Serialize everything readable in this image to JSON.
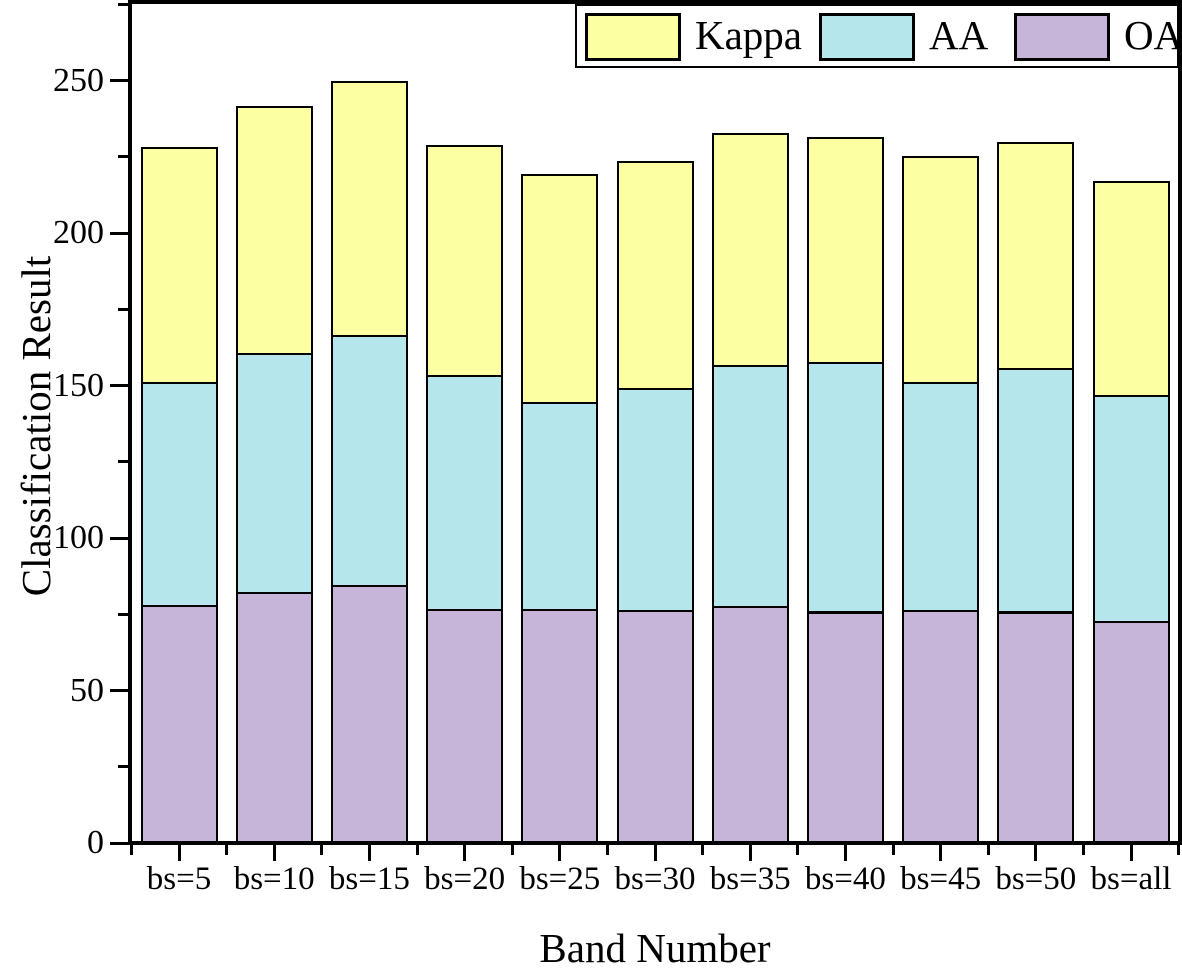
{
  "chart_data": {
    "type": "bar",
    "stacked": true,
    "title": "",
    "xlabel": "Band Number",
    "ylabel": "Classification Result",
    "categories": [
      "bs=5",
      "bs=10",
      "bs=15",
      "bs=20",
      "bs=25",
      "bs=30",
      "bs=35",
      "bs=40",
      "bs=45",
      "bs=50",
      "bs=all"
    ],
    "series": [
      {
        "name": "OA",
        "color": "#C6B5D9",
        "values": [
          78.1,
          82.2,
          84.7,
          76.8,
          76.7,
          76.5,
          77.6,
          75.9,
          76.5,
          75.9,
          72.7
        ]
      },
      {
        "name": "AA",
        "color": "#B5E6EB",
        "values": [
          73.0,
          78.5,
          81.7,
          76.8,
          68.0,
          72.6,
          79.0,
          81.8,
          74.7,
          79.8,
          74.1
        ]
      },
      {
        "name": "Kappa",
        "color": "#FDFFA3",
        "values": [
          77.0,
          81.1,
          83.4,
          75.1,
          74.7,
          74.5,
          76.3,
          73.8,
          73.9,
          74.0,
          70.2
        ]
      }
    ],
    "totals": [
      228.1,
      241.8,
      249.8,
      228.7,
      219.4,
      223.6,
      232.9,
      231.5,
      225.1,
      229.7,
      217.0
    ],
    "y_ticks_major": [
      0,
      50,
      100,
      150,
      200,
      250
    ],
    "y_ticks_minor": [
      25,
      75,
      125,
      175,
      225,
      275
    ],
    "ylim": [
      0,
      275.5
    ],
    "grid": false,
    "legend_position": "top-right",
    "bar_edge_color": "#000000"
  },
  "legend": {
    "items": [
      {
        "label": "Kappa",
        "color": "#FDFFA3"
      },
      {
        "label": "AA",
        "color": "#B5E6EB"
      },
      {
        "label": "OA",
        "color": "#C6B5D9"
      }
    ]
  }
}
